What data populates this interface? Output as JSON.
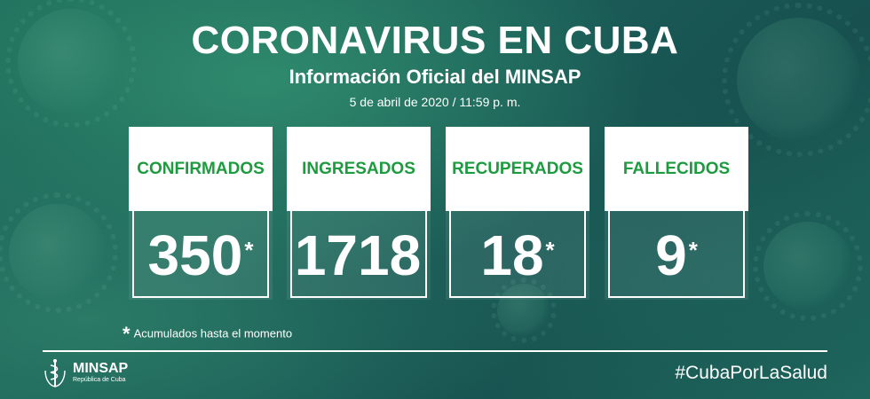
{
  "header": {
    "title": "CORONAVIRUS EN CUBA",
    "subtitle": "Información Oficial del MINSAP",
    "date": "5 de abril de 2020 / 11:59 p. m."
  },
  "stats": [
    {
      "label": "CONFIRMADOS",
      "value": "350",
      "asterisk": "*"
    },
    {
      "label": "INGRESADOS",
      "value": "1718",
      "asterisk": ""
    },
    {
      "label": "RECUPERADOS",
      "value": "18",
      "asterisk": "*"
    },
    {
      "label": "FALLECIDOS",
      "value": "9",
      "asterisk": "*"
    }
  ],
  "note": {
    "star": "*",
    "text": "Acumulados hasta el momento"
  },
  "footer": {
    "logo_name": "MINSAP",
    "logo_sub": "República de Cuba",
    "hashtag": "#CubaPorLaSalud"
  },
  "colors": {
    "label_green": "#1d9b3f",
    "background": "#1f6e5c",
    "text": "#ffffff"
  }
}
